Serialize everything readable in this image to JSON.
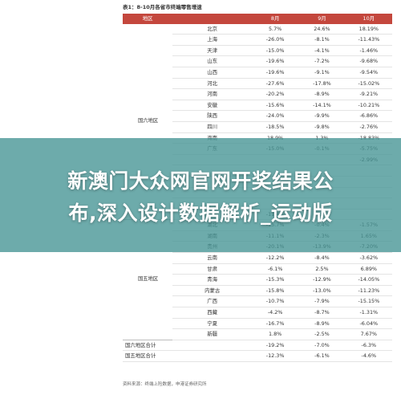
{
  "document": {
    "title": "表1：8-10月各省市终端零售增速",
    "headers": [
      "地区",
      "",
      "8月",
      "9月",
      "10月"
    ],
    "group_east": "国六地区",
    "group_west": "国五地区",
    "rows_east": [
      {
        "province": "北京",
        "aug": "5.7%",
        "sep": "24.6%",
        "oct": "18.19%"
      },
      {
        "province": "上海",
        "aug": "-26.0%",
        "sep": "-8.1%",
        "oct": "-11.43%"
      },
      {
        "province": "天津",
        "aug": "-15.0%",
        "sep": "-4.1%",
        "oct": "-1.46%"
      },
      {
        "province": "山东",
        "aug": "-19.6%",
        "sep": "-7.2%",
        "oct": "-9.68%"
      },
      {
        "province": "山西",
        "aug": "-19.6%",
        "sep": "-9.1%",
        "oct": "-9.54%"
      },
      {
        "province": "河北",
        "aug": "-27.6%",
        "sep": "-17.8%",
        "oct": "-15.02%"
      },
      {
        "province": "河南",
        "aug": "-20.2%",
        "sep": "-8.9%",
        "oct": "-9.21%"
      },
      {
        "province": "安徽",
        "aug": "-15.6%",
        "sep": "-14.1%",
        "oct": "-10.21%"
      },
      {
        "province": "陕西",
        "aug": "-24.0%",
        "sep": "-9.9%",
        "oct": "-6.86%"
      },
      {
        "province": "四川",
        "aug": "-18.5%",
        "sep": "-9.8%",
        "oct": "-2.76%"
      },
      {
        "province": "海南",
        "aug": "18.9%",
        "sep": "1.3%",
        "oct": "-18.83%"
      },
      {
        "province": "广东",
        "aug": "-15.0%",
        "sep": "-0.1%",
        "oct": "-5.75%"
      },
      {
        "province": "",
        "aug": "",
        "sep": "",
        "oct": "-2.99%"
      },
      {
        "province": "",
        "aug": "",
        "sep": "",
        "oct": ""
      },
      {
        "province": "",
        "aug": "",
        "sep": "",
        "oct": ""
      },
      {
        "province": "",
        "aug": "",
        "sep": "",
        "oct": ""
      },
      {
        "province": "",
        "aug": "",
        "sep": "",
        "oct": ""
      },
      {
        "province": "",
        "aug": "-11.4%",
        "sep": "-3.7%",
        "oct": ""
      }
    ],
    "rows_west": [
      {
        "province": "湖北",
        "aug": "-15.7%",
        "sep": "-0.4%",
        "oct": "-1.57%"
      },
      {
        "province": "湖南",
        "aug": "-11.1%",
        "sep": "-2.3%",
        "oct": "1.65%"
      },
      {
        "province": "贵州",
        "aug": "-20.1%",
        "sep": "-13.9%",
        "oct": "-7.20%"
      },
      {
        "province": "云南",
        "aug": "-12.2%",
        "sep": "-8.4%",
        "oct": "-3.62%"
      },
      {
        "province": "甘肃",
        "aug": "-6.1%",
        "sep": "2.5%",
        "oct": "6.89%"
      },
      {
        "province": "青海",
        "aug": "-15.3%",
        "sep": "-12.9%",
        "oct": "-14.05%"
      },
      {
        "province": "内蒙古",
        "aug": "-15.8%",
        "sep": "-13.0%",
        "oct": "-11.23%"
      },
      {
        "province": "广西",
        "aug": "-10.7%",
        "sep": "-7.9%",
        "oct": "-15.15%"
      },
      {
        "province": "西藏",
        "aug": "-4.2%",
        "sep": "-8.7%",
        "oct": "-1.31%"
      },
      {
        "province": "宁夏",
        "aug": "-16.7%",
        "sep": "-8.9%",
        "oct": "-6.04%"
      },
      {
        "province": "新疆",
        "aug": "1.8%",
        "sep": "-2.5%",
        "oct": "7.67%"
      }
    ],
    "totals": [
      {
        "label": "国六地区合计",
        "aug": "-19.2%",
        "sep": "-7.0%",
        "oct": "-6.3%"
      },
      {
        "label": "国五地区合计",
        "aug": "-12.3%",
        "sep": "-6.1%",
        "oct": "-4.6%"
      }
    ],
    "source": "资料来源：终端上险数据，申港证券研究所"
  },
  "banner": {
    "line1": "新澳门大众网官网开奖结果公",
    "line2": "布,深入设计数据解析_运动版"
  }
}
